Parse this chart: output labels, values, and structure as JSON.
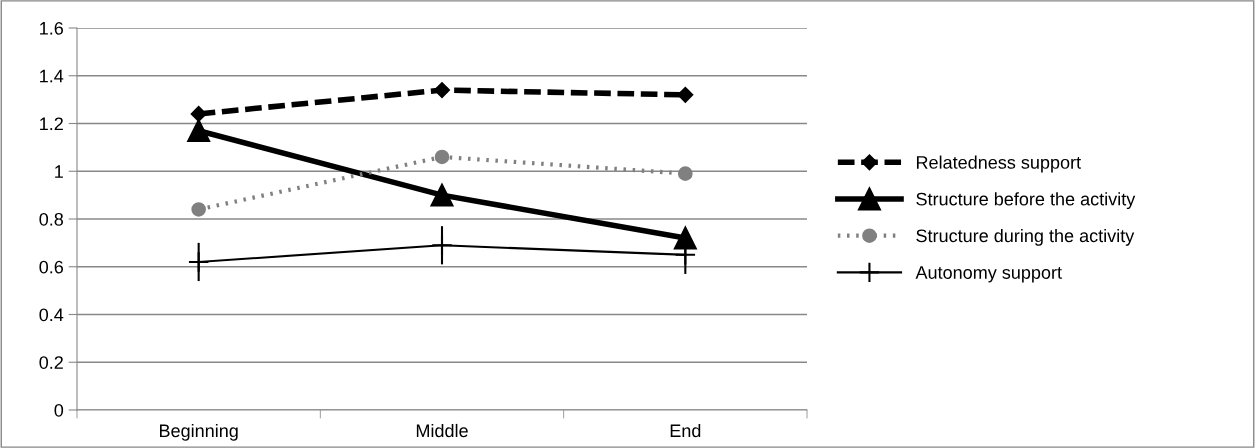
{
  "chart_data": {
    "type": "line",
    "categories": [
      "Beginning",
      "Middle",
      "End"
    ],
    "series": [
      {
        "name": "Relatedness support",
        "color": "#000000",
        "marker": "diamond",
        "line_style": "dashed",
        "values": [
          1.24,
          1.34,
          1.32
        ]
      },
      {
        "name": "Structure before the activity",
        "color": "#000000",
        "marker": "triangle",
        "line_style": "solid",
        "values": [
          1.17,
          0.9,
          0.72
        ]
      },
      {
        "name": "Structure during the activity",
        "color": "#808080",
        "marker": "circle",
        "line_style": "dotted",
        "values": [
          0.84,
          1.06,
          0.99
        ]
      },
      {
        "name": "Autonomy support",
        "color": "#000000",
        "marker": "cross",
        "line_style": "solid",
        "values": [
          0.62,
          0.69,
          0.65
        ],
        "errors": [
          0.08,
          0.08,
          0.08
        ]
      }
    ],
    "ylim": [
      0,
      1.6
    ],
    "yticks": [
      0,
      0.2,
      0.4,
      0.6,
      0.8,
      1,
      1.2,
      1.4,
      1.6
    ],
    "grid": "y",
    "legend": "right"
  }
}
